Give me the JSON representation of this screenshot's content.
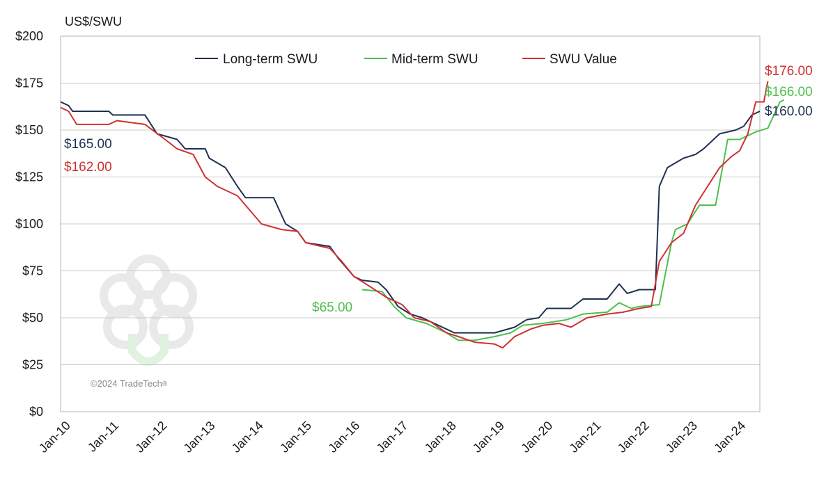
{
  "chart_data": {
    "type": "line",
    "ylabel": "US$/SWU",
    "ylim": [
      0,
      200
    ],
    "yticks": [
      "$0",
      "$25",
      "$50",
      "$75",
      "$100",
      "$125",
      "$150",
      "$175",
      "$200"
    ],
    "yticks_values": [
      0,
      25,
      50,
      75,
      100,
      125,
      150,
      175,
      200
    ],
    "xticks": [
      "Jan-10",
      "Jan-11",
      "Jan-12",
      "Jan-13",
      "Jan-14",
      "Jan-15",
      "Jan-16",
      "Jan-17",
      "Jan-18",
      "Jan-19",
      "Jan-20",
      "Jan-21",
      "Jan-22",
      "Jan-23",
      "Jan-24"
    ],
    "x_range": [
      "2010-01",
      "2024-07"
    ],
    "grid": "horizontal",
    "legend_position": "top-center",
    "series": [
      {
        "name": "Long-term SWU",
        "color": "#1f3050",
        "points": [
          [
            "2010-01",
            165
          ],
          [
            "2010-03",
            163
          ],
          [
            "2010-04",
            160
          ],
          [
            "2011-01",
            160
          ],
          [
            "2011-02",
            158
          ],
          [
            "2011-10",
            158
          ],
          [
            "2012-01",
            148
          ],
          [
            "2012-06",
            145
          ],
          [
            "2012-08",
            140
          ],
          [
            "2013-01",
            140
          ],
          [
            "2013-02",
            135
          ],
          [
            "2013-06",
            130
          ],
          [
            "2013-09",
            120
          ],
          [
            "2013-11",
            114
          ],
          [
            "2014-06",
            114
          ],
          [
            "2014-09",
            100
          ],
          [
            "2014-12",
            96
          ],
          [
            "2015-02",
            90
          ],
          [
            "2015-08",
            88
          ],
          [
            "2015-10",
            82
          ],
          [
            "2016-02",
            72
          ],
          [
            "2016-04",
            70
          ],
          [
            "2016-08",
            69
          ],
          [
            "2016-10",
            65
          ],
          [
            "2017-01",
            56
          ],
          [
            "2017-04",
            52
          ],
          [
            "2017-07",
            50
          ],
          [
            "2017-10",
            47
          ],
          [
            "2018-01",
            44
          ],
          [
            "2018-03",
            42
          ],
          [
            "2019-01",
            42
          ],
          [
            "2019-06",
            45
          ],
          [
            "2019-09",
            49
          ],
          [
            "2019-12",
            50
          ],
          [
            "2020-02",
            55
          ],
          [
            "2020-08",
            55
          ],
          [
            "2020-11",
            60
          ],
          [
            "2021-05",
            60
          ],
          [
            "2021-08",
            68
          ],
          [
            "2021-10",
            63
          ],
          [
            "2022-01",
            65
          ],
          [
            "2022-03",
            65
          ],
          [
            "2022-05",
            65
          ],
          [
            "2022-06",
            120
          ],
          [
            "2022-08",
            130
          ],
          [
            "2022-12",
            135
          ],
          [
            "2023-03",
            137
          ],
          [
            "2023-05",
            140
          ],
          [
            "2023-09",
            148
          ],
          [
            "2024-01",
            150
          ],
          [
            "2024-03",
            152
          ],
          [
            "2024-05",
            158
          ],
          [
            "2024-07",
            160
          ]
        ]
      },
      {
        "name": "Mid-term SWU",
        "color": "#4cc04c",
        "points": [
          [
            "2016-04",
            65
          ],
          [
            "2016-09",
            64
          ],
          [
            "2016-12",
            56
          ],
          [
            "2017-03",
            50
          ],
          [
            "2017-08",
            47
          ],
          [
            "2017-10",
            45
          ],
          [
            "2018-01",
            42
          ],
          [
            "2018-04",
            38
          ],
          [
            "2018-08",
            38
          ],
          [
            "2019-01",
            40
          ],
          [
            "2019-05",
            42
          ],
          [
            "2019-08",
            46
          ],
          [
            "2020-01",
            47
          ],
          [
            "2020-07",
            49
          ],
          [
            "2020-11",
            52
          ],
          [
            "2021-05",
            53
          ],
          [
            "2021-08",
            58
          ],
          [
            "2021-11",
            55
          ],
          [
            "2022-01",
            56
          ],
          [
            "2022-06",
            57
          ],
          [
            "2022-09",
            90
          ],
          [
            "2022-10",
            97
          ],
          [
            "2023-01",
            100
          ],
          [
            "2023-04",
            110
          ],
          [
            "2023-08",
            110
          ],
          [
            "2023-11",
            145
          ],
          [
            "2024-02",
            145
          ],
          [
            "2024-06",
            149
          ],
          [
            "2024-09",
            151
          ],
          [
            "2024-12",
            165
          ],
          [
            "2025-01",
            166
          ]
        ]
      },
      {
        "name": "SWU Value",
        "color": "#d03030",
        "points": [
          [
            "2010-01",
            162
          ],
          [
            "2010-03",
            160
          ],
          [
            "2010-05",
            153
          ],
          [
            "2011-01",
            153
          ],
          [
            "2011-03",
            155
          ],
          [
            "2011-10",
            153
          ],
          [
            "2012-03",
            145
          ],
          [
            "2012-06",
            140
          ],
          [
            "2012-10",
            137
          ],
          [
            "2013-01",
            125
          ],
          [
            "2013-04",
            120
          ],
          [
            "2013-09",
            115
          ],
          [
            "2013-11",
            110
          ],
          [
            "2014-03",
            100
          ],
          [
            "2014-08",
            97
          ],
          [
            "2014-12",
            96
          ],
          [
            "2015-02",
            90
          ],
          [
            "2015-08",
            87
          ],
          [
            "2015-11",
            80
          ],
          [
            "2016-02",
            72
          ],
          [
            "2016-05",
            68
          ],
          [
            "2016-10",
            61
          ],
          [
            "2017-02",
            57
          ],
          [
            "2017-05",
            50
          ],
          [
            "2017-09",
            48
          ],
          [
            "2018-01",
            42
          ],
          [
            "2018-04",
            40
          ],
          [
            "2018-08",
            37
          ],
          [
            "2019-01",
            36
          ],
          [
            "2019-03",
            34
          ],
          [
            "2019-06",
            40
          ],
          [
            "2019-10",
            44
          ],
          [
            "2020-01",
            46
          ],
          [
            "2020-05",
            47
          ],
          [
            "2020-08",
            45
          ],
          [
            "2020-12",
            50
          ],
          [
            "2021-05",
            52
          ],
          [
            "2021-09",
            53
          ],
          [
            "2022-01",
            55
          ],
          [
            "2022-04",
            56
          ],
          [
            "2022-06",
            80
          ],
          [
            "2022-09",
            90
          ],
          [
            "2022-12",
            95
          ],
          [
            "2023-03",
            110
          ],
          [
            "2023-06",
            120
          ],
          [
            "2023-09",
            130
          ],
          [
            "2023-12",
            136
          ],
          [
            "2024-02",
            139
          ],
          [
            "2024-04",
            148
          ],
          [
            "2024-06",
            165
          ],
          [
            "2024-08",
            165
          ],
          [
            "2024-09",
            176
          ]
        ]
      }
    ],
    "annotations": [
      {
        "text": "$165.00",
        "series": "Long-term SWU",
        "at": "start"
      },
      {
        "text": "$162.00",
        "series": "SWU Value",
        "at": "start"
      },
      {
        "text": "$65.00",
        "series": "Mid-term SWU",
        "at": "start"
      },
      {
        "text": "$176.00",
        "series": "SWU Value",
        "at": "end"
      },
      {
        "text": "$166.00",
        "series": "Mid-term SWU",
        "at": "end"
      },
      {
        "text": "$160.00",
        "series": "Long-term SWU",
        "at": "end"
      }
    ]
  },
  "copyright": "©2024 TradeTech",
  "registered_mark": "®"
}
